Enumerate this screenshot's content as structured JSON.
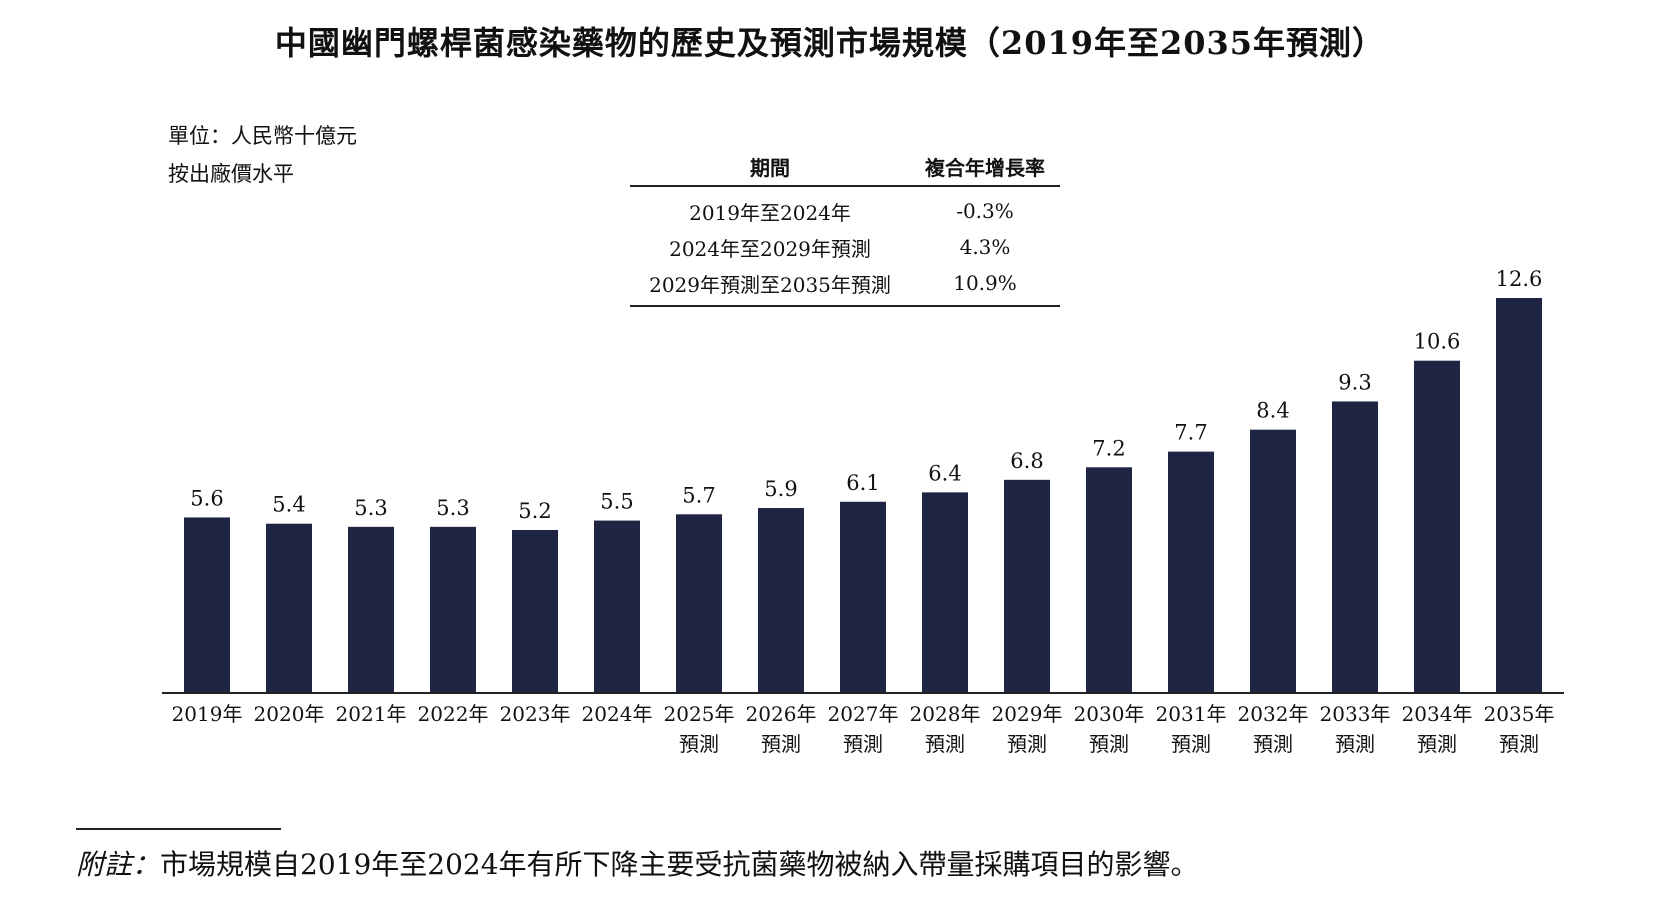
{
  "title": "中國幽門螺桿菌感染藥物的歷史及預測市場規模（2019年至2035年預測）",
  "unit": "單位：人民幣十億元",
  "price_basis": "按出廠價水平",
  "cagr_table": {
    "headers": [
      "期間",
      "複合年增長率"
    ],
    "rows": [
      {
        "period": "2019年至2024年",
        "rate": "-0.3%"
      },
      {
        "period": "2024年至2029年預測",
        "rate": "4.3%"
      },
      {
        "period": "2029年預測至2035年預測",
        "rate": "10.9%"
      }
    ]
  },
  "chart_data": {
    "type": "bar",
    "categories": [
      "2019年",
      "2020年",
      "2021年",
      "2022年",
      "2023年",
      "2024年",
      "2025年",
      "2026年",
      "2027年",
      "2028年",
      "2029年",
      "2030年",
      "2031年",
      "2032年",
      "2033年",
      "2034年",
      "2035年"
    ],
    "category_sublabels": [
      "",
      "",
      "",
      "",
      "",
      "",
      "預測",
      "預測",
      "預測",
      "預測",
      "預測",
      "預測",
      "預測",
      "預測",
      "預測",
      "預測",
      "預測"
    ],
    "values": [
      5.6,
      5.4,
      5.3,
      5.3,
      5.2,
      5.5,
      5.7,
      5.9,
      6.1,
      6.4,
      6.8,
      7.2,
      7.7,
      8.4,
      9.3,
      10.6,
      12.6
    ],
    "ylim": [
      0,
      12.6
    ],
    "bar_color": "#1f2443",
    "data_labels": true,
    "grid": false,
    "legend": "none"
  },
  "footnote": {
    "lead": "附註：",
    "text": "市場規模自2019年至2024年有所下降主要受抗菌藥物被納入帶量採購項目的影響。"
  }
}
